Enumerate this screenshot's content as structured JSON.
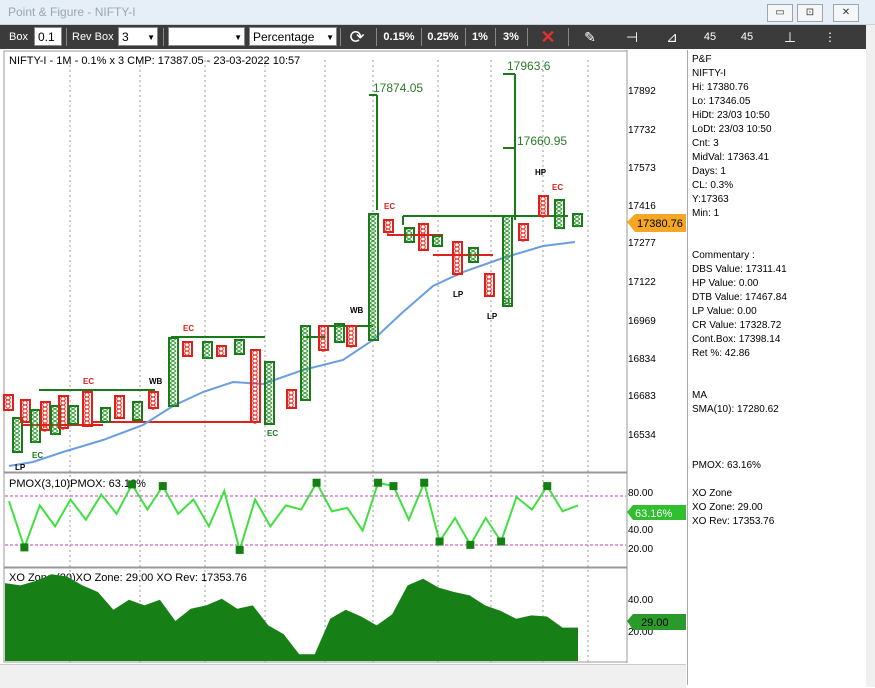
{
  "window": {
    "title": "Point & Figure - NIFTY-I",
    "buttons": [
      "▭",
      "⊡",
      "✕"
    ]
  },
  "toolbar": {
    "box_label": "Box",
    "box_value": "0.1",
    "rev_box_label": "Rev Box",
    "rev_box_value": "3",
    "method_value": "Percentage",
    "pct_buttons": [
      "0.15%",
      "0.25%",
      "1%",
      "3%"
    ],
    "icon_45_a": "45",
    "icon_45_b": "45"
  },
  "main_panel": {
    "header": "NIFTY-I - 1M - 0.1% x 3 CMP: 17387.05 - 23-03-2022 10:57",
    "price_ticks": [
      "17892",
      "17732",
      "17573",
      "17416",
      "17277",
      "17122",
      "16969",
      "16834",
      "16683",
      "16534"
    ],
    "current_price_tag": "17380.76",
    "target_labels": [
      "17874.05",
      "17963.6",
      "17660.95"
    ],
    "pattern_labels": {
      "lp1": "LP",
      "ec1": "EC",
      "ec2": "EC",
      "wb1": "WB",
      "ec3": "EC",
      "ec4": "EC",
      "wb2": "WB",
      "ec5": "EC",
      "lp2": "LP",
      "lp3": "LP",
      "ec6": "EC",
      "hp": "HP",
      "ec7": "EC"
    },
    "colors": {
      "x": "#2a9a2a",
      "o": "#e0201a",
      "column": "#1a7a1a",
      "sma": "#6a9ee0",
      "target": "#2a7a2a",
      "price_tag": "#f5a623"
    }
  },
  "pmox_panel": {
    "header": "PMOX(3,10)PMOX: 63.16%",
    "ticks": [
      "80.00",
      "40.00",
      "20.00"
    ],
    "value_tag": "63.16%",
    "values": [
      70,
      15,
      65,
      40,
      72,
      48,
      78,
      55,
      90,
      60,
      88,
      55,
      72,
      40,
      82,
      12,
      72,
      40,
      65,
      60,
      92,
      58,
      62,
      35,
      92,
      88,
      48,
      92,
      22,
      50,
      18,
      50,
      22,
      75,
      60,
      88,
      58,
      65
    ]
  },
  "xo_panel": {
    "header": "XO Zone (20)XO Zone: 29.00 XO Rev: 17353.76",
    "ticks": [
      "40.00",
      "20.00"
    ],
    "value_tag": "29.00",
    "values": [
      70,
      68,
      72,
      78,
      76,
      68,
      62,
      46,
      55,
      50,
      55,
      36,
      47,
      50,
      56,
      47,
      50,
      32,
      24,
      6,
      6,
      38,
      46,
      40,
      32,
      42,
      68,
      74,
      66,
      62,
      59,
      50,
      45,
      38,
      41,
      40,
      30,
      30
    ]
  },
  "info_panel": {
    "lines1": [
      "P&F",
      "NIFTY-I",
      "Hi: 17380.76",
      "Lo: 17346.05",
      "HiDt: 23/03 10:50",
      "LoDt: 23/03 10:50",
      "Cnt: 3",
      "MidVal: 17363.41",
      "Days: 1",
      "CL: 0.3%",
      "Y:17363",
      "Min: 1"
    ],
    "lines2": [
      "Commentary :",
      "DBS Value:  17311.41",
      "HP Value: 0.00",
      "DTB Value: 17467.84",
      "LP Value: 0.00",
      "CR Value: 17328.72",
      "Cont.Box: 17398.14",
      "Ret %: 42.86"
    ],
    "lines3": [
      "MA",
      "SMA(10): 17280.62"
    ],
    "lines4": [
      "PMOX: 63.16%"
    ],
    "lines5": [
      "XO Zone",
      "XO Zone: 29.00",
      "XO Rev: 17353.76"
    ]
  }
}
